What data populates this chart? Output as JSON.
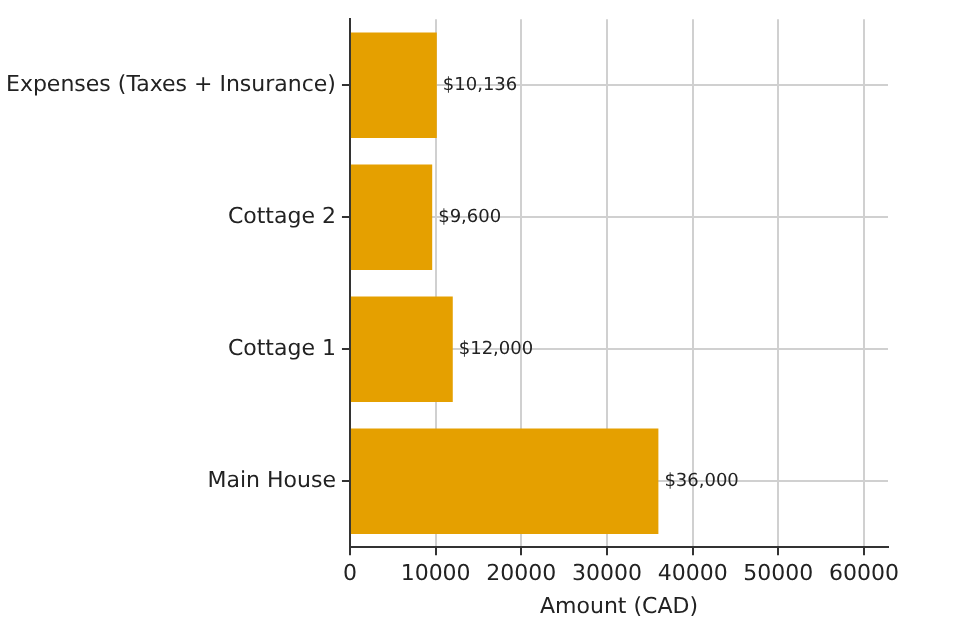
{
  "chart_data": {
    "type": "bar",
    "orientation": "horizontal",
    "xlabel": "Amount (CAD)",
    "categories": [
      "Expenses (Taxes + Insurance)",
      "Cottage 2",
      "Cottage 1",
      "Main House"
    ],
    "values": [
      10136,
      9600,
      12000,
      36000
    ],
    "value_labels": [
      "$10,136",
      "$9,600",
      "$12,000",
      "$36,000"
    ],
    "color": "#e5a000",
    "xlim": [
      0,
      62800
    ],
    "xticks": [
      0,
      10000,
      20000,
      30000,
      40000,
      50000,
      60000
    ],
    "grid": true
  }
}
